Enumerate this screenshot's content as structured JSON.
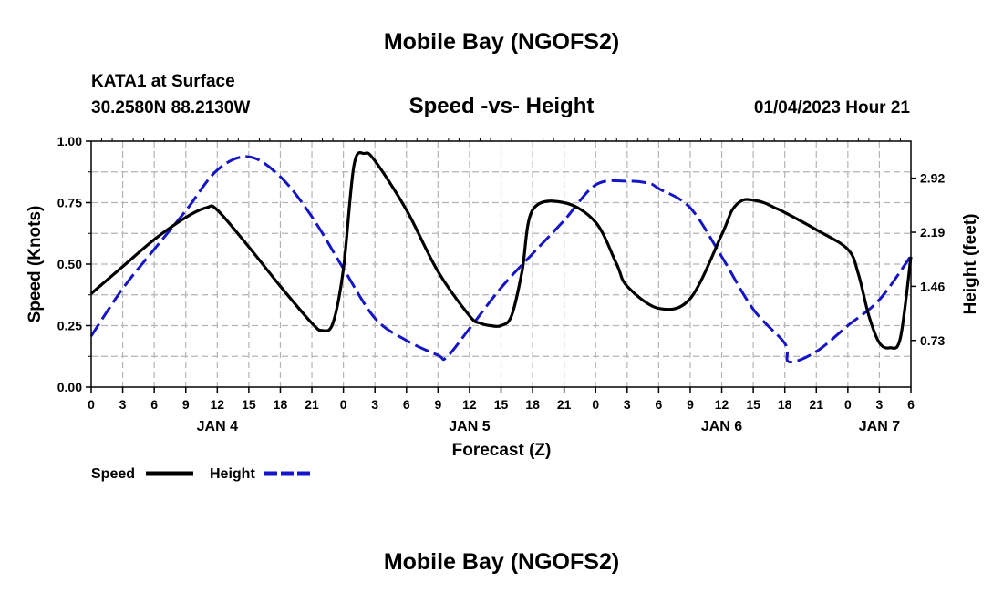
{
  "header": {
    "title": "Mobile Bay (NGOFS2)",
    "station": "KATA1 at Surface",
    "coords": "30.2580N  88.2130W",
    "datetime": "01/04/2023 Hour 21",
    "bottom_title": "Mobile Bay (NGOFS2)"
  },
  "legend": {
    "speed_label": "Speed",
    "height_label": "Height"
  },
  "colors": {
    "speed": "#000000",
    "height": "#1515c8",
    "grid": "#b4b4b4"
  },
  "chart_data": {
    "type": "line",
    "title": "Speed -vs- Height",
    "xlabel": "Forecast (Z)",
    "ylabel": "Speed (Knots)",
    "y2label": "Height (feet)",
    "xlim": [
      0,
      78
    ],
    "ylim": [
      0,
      1.0
    ],
    "y2lim": [
      0.1,
      3.42
    ],
    "x_ticks": [
      0,
      3,
      6,
      9,
      12,
      15,
      18,
      21,
      24,
      27,
      30,
      33,
      36,
      39,
      42,
      45,
      48,
      51,
      54,
      57,
      60,
      63,
      66,
      69,
      72,
      75,
      78
    ],
    "x_tick_labels": [
      "0",
      "3",
      "6",
      "9",
      "12",
      "15",
      "18",
      "21",
      "0",
      "3",
      "6",
      "9",
      "12",
      "15",
      "18",
      "21",
      "0",
      "3",
      "6",
      "9",
      "12",
      "15",
      "18",
      "21",
      "0",
      "3",
      "6"
    ],
    "date_labels": [
      {
        "x": 12,
        "label": "JAN 4"
      },
      {
        "x": 36,
        "label": "JAN 5"
      },
      {
        "x": 60,
        "label": "JAN 6"
      },
      {
        "x": 75,
        "label": "JAN 7"
      }
    ],
    "y_ticks": [
      0.0,
      0.25,
      0.5,
      0.75,
      1.0
    ],
    "y_tick_labels": [
      "0.00",
      "0.25",
      "0.50",
      "0.75",
      "1.00"
    ],
    "y2_ticks": [
      0.73,
      1.46,
      2.19,
      2.92
    ],
    "y2_tick_labels": [
      "0.73",
      "1.46",
      "2.19",
      "2.92"
    ],
    "grid": true,
    "series": [
      {
        "name": "Speed",
        "axis": "left",
        "style": "solid",
        "x": [
          0,
          3,
          6,
          9,
          11,
          12,
          15,
          18,
          21,
          22,
          23,
          24,
          25,
          26,
          27,
          30,
          33,
          36,
          37,
          38,
          39,
          40,
          41,
          42,
          45,
          48,
          50,
          51,
          54,
          57,
          60,
          61,
          62,
          63,
          64,
          65,
          66,
          69,
          72,
          73,
          74,
          75,
          76,
          77,
          78
        ],
        "values": [
          0.38,
          0.49,
          0.6,
          0.69,
          0.73,
          0.72,
          0.57,
          0.41,
          0.26,
          0.23,
          0.26,
          0.48,
          0.9,
          0.95,
          0.92,
          0.72,
          0.47,
          0.29,
          0.26,
          0.25,
          0.25,
          0.29,
          0.47,
          0.72,
          0.75,
          0.67,
          0.5,
          0.41,
          0.32,
          0.36,
          0.62,
          0.72,
          0.76,
          0.76,
          0.75,
          0.73,
          0.71,
          0.64,
          0.56,
          0.46,
          0.29,
          0.18,
          0.16,
          0.2,
          0.53
        ]
      },
      {
        "name": "Height",
        "axis": "right",
        "style": "dashed",
        "x": [
          0,
          3,
          6,
          9,
          12,
          15,
          18,
          21,
          24,
          27,
          30,
          33,
          33.8,
          36,
          39,
          42,
          45,
          48,
          51,
          53.1,
          54,
          57,
          60,
          63,
          66,
          66.4,
          69,
          72,
          75,
          78
        ],
        "values": [
          0.79,
          1.43,
          1.96,
          2.48,
          3.03,
          3.21,
          2.94,
          2.4,
          1.7,
          1.03,
          0.73,
          0.53,
          0.5,
          0.89,
          1.44,
          1.9,
          2.35,
          2.83,
          2.88,
          2.85,
          2.78,
          2.52,
          1.86,
          1.15,
          0.69,
          0.44,
          0.58,
          0.93,
          1.28,
          1.87
        ]
      }
    ]
  }
}
